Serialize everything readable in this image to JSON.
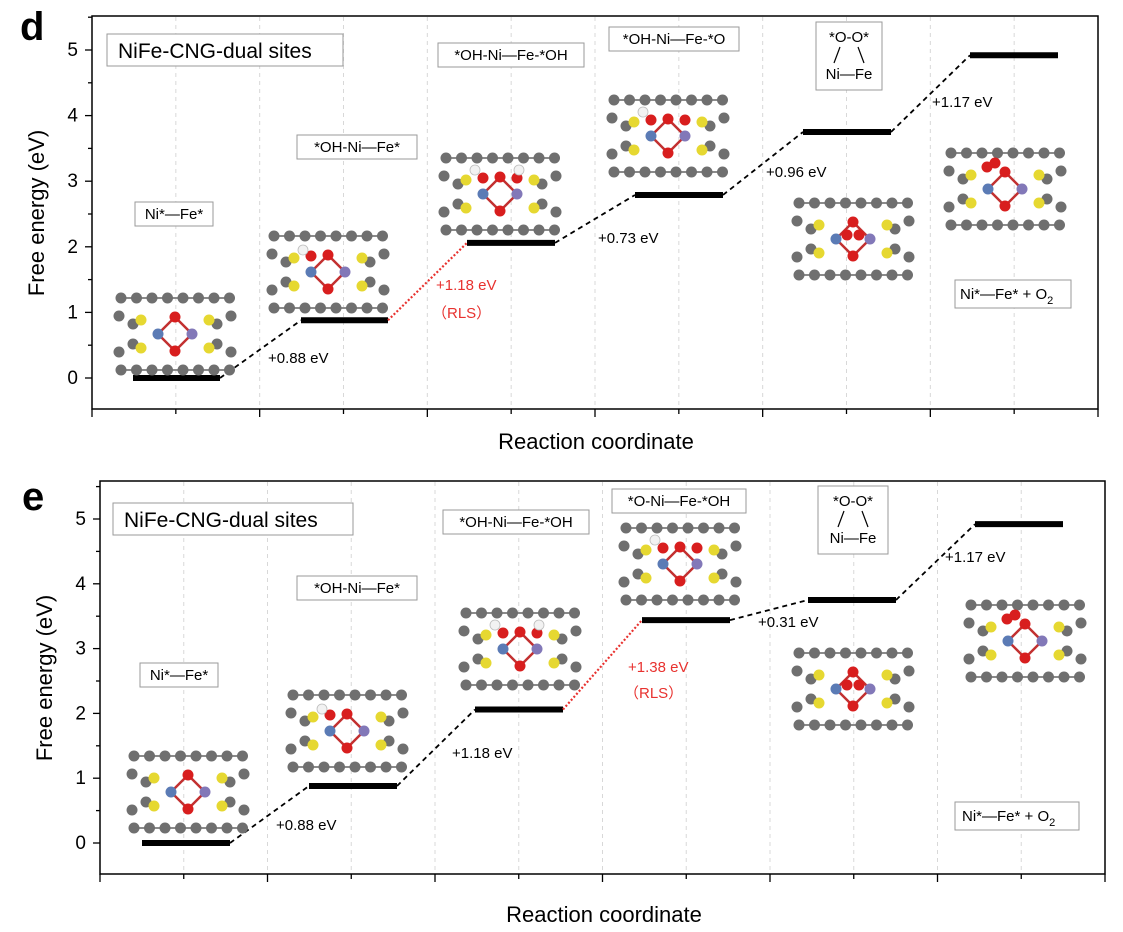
{
  "colors": {
    "level": "#000000",
    "connector": "#000000",
    "rls": "#e8322f",
    "carbon": "#6f6f6f",
    "sulfur": "#e6d831",
    "oxygen": "#d81e1e",
    "hydrogen": "#f2f2f2",
    "nickel": "#5b7bb5",
    "iron": "#8278b8"
  },
  "chart_data": [
    {
      "panel": "d",
      "type": "line",
      "title": "NiFe-CNG-dual sites",
      "xlabel": "Reaction coordinate",
      "ylabel": "Free energy (eV)",
      "ylim": [
        -0.5,
        5.5
      ],
      "yticks": [
        0,
        1,
        2,
        3,
        4,
        5
      ],
      "grid": true,
      "states": [
        "Ni*—Fe*",
        "*OH-Ni—Fe*",
        "*OH-Ni—Fe-*OH",
        "*OH-Ni—Fe-*O",
        "*O-O* / Ni—Fe",
        "Ni*—Fe* + O2"
      ],
      "energies": [
        0,
        0.88,
        2.06,
        2.79,
        3.75,
        4.92
      ],
      "steps": [
        "+0.88 eV",
        "+1.18 eV",
        "+0.73 eV",
        "+0.96 eV",
        "+1.17 eV"
      ],
      "rls_step": 1,
      "rls_label": "（RLS）"
    },
    {
      "panel": "e",
      "type": "line",
      "title": "NiFe-CNG-dual sites",
      "xlabel": "Reaction coordinate",
      "ylabel": "Free energy (eV)",
      "ylim": [
        -0.5,
        5.5
      ],
      "yticks": [
        0,
        1,
        2,
        3,
        4,
        5
      ],
      "grid": true,
      "states": [
        "Ni*—Fe*",
        "*OH-Ni—Fe*",
        "*OH-Ni—Fe-*OH",
        "*O-Ni—Fe-*OH",
        "*O-O* / Ni—Fe",
        "Ni*—Fe* + O2"
      ],
      "energies": [
        0,
        0.88,
        2.06,
        3.44,
        3.75,
        4.92
      ],
      "steps": [
        "+0.88 eV",
        "+1.18 eV",
        "+1.38 eV",
        "+0.31 eV",
        "+1.17 eV"
      ],
      "rls_step": 2,
      "rls_label": "（RLS）"
    }
  ],
  "panels": [
    {
      "letter": "d",
      "title": "NiFe-CNG-dual sites",
      "xlabel": "Reaction coordinate",
      "ylabel": "Free energy (eV)",
      "labels": {
        "s0": "Ni*—Fe*",
        "s1": "*OH-Ni—Fe*",
        "s2": "*OH-Ni—Fe-*OH",
        "s3": "*OH-Ni—Fe-*O",
        "s4_top": "*O-O*",
        "s4_bottom": "Ni—Fe",
        "s5": "Ni*—Fe* + O",
        "s5_sub": "2"
      },
      "steps": [
        "+0.88 eV",
        "+1.18 eV",
        "+0.73 eV",
        "+0.96 eV",
        "+1.17 eV"
      ],
      "rls": "（RLS）"
    },
    {
      "letter": "e",
      "title": "NiFe-CNG-dual sites",
      "xlabel": "Reaction coordinate",
      "ylabel": "Free energy (eV)",
      "labels": {
        "s0": "Ni*—Fe*",
        "s1": "*OH-Ni—Fe*",
        "s2": "*OH-Ni—Fe-*OH",
        "s3": "*O-Ni—Fe-*OH",
        "s4_top": "*O-O*",
        "s4_bottom": "Ni—Fe",
        "s5": "Ni*—Fe* + O",
        "s5_sub": "2"
      },
      "steps": [
        "+0.88 eV",
        "+1.18 eV",
        "+1.38 eV",
        "+0.31 eV",
        "+1.17 eV"
      ],
      "rls": "（RLS）"
    }
  ]
}
